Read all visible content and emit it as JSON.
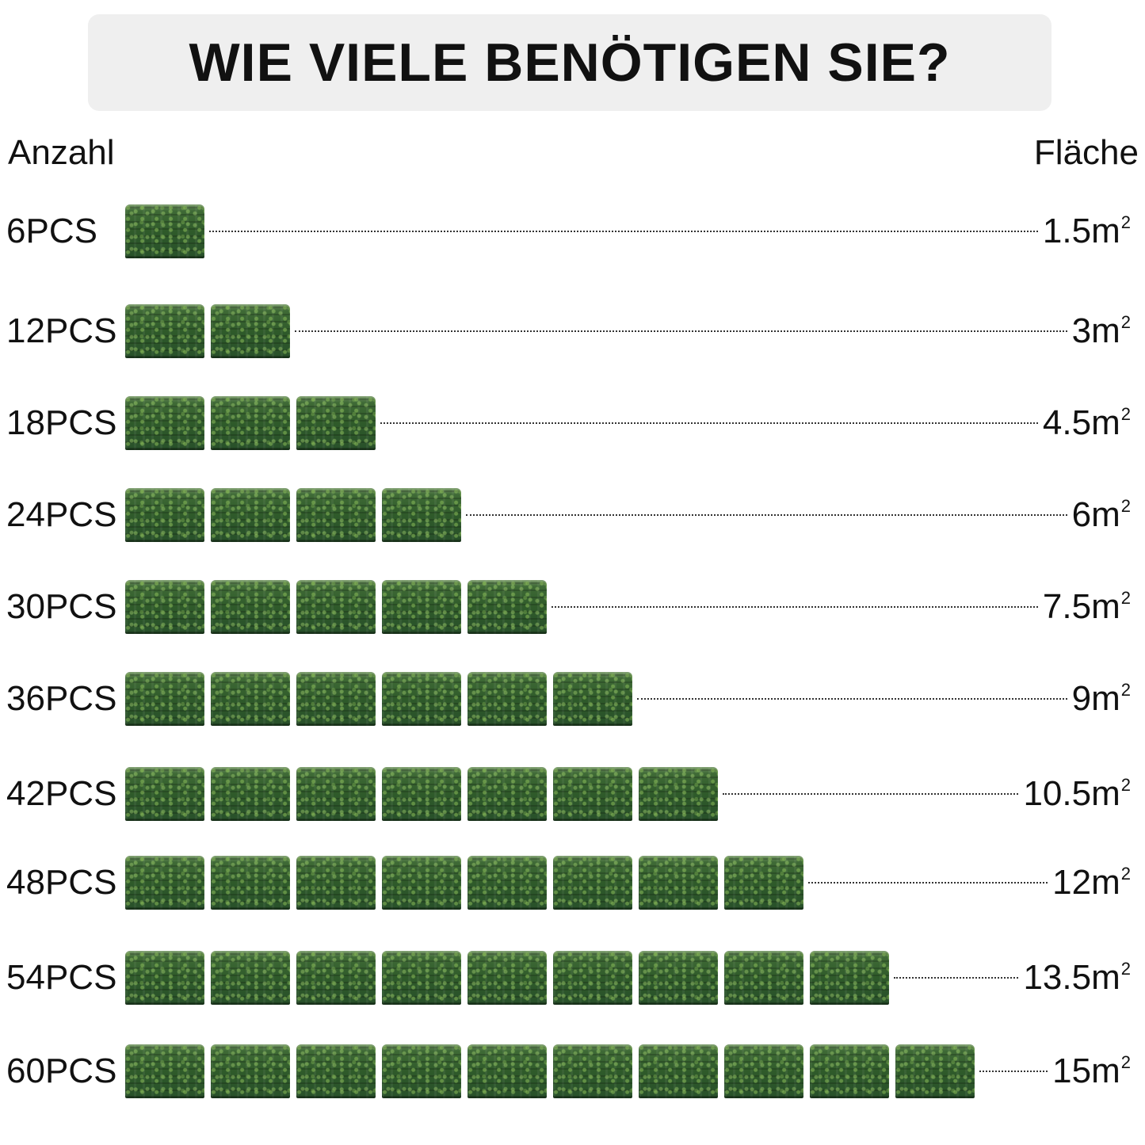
{
  "title": "WIE VIELE BENÖTIGEN SIE?",
  "headers": {
    "left": "Anzahl",
    "right": "Fläche"
  },
  "unit_superscript": "2",
  "colors": {
    "title_background": "#efefef",
    "text": "#111111",
    "panel_green": "#2f5a2a"
  },
  "rows": [
    {
      "quantity_label": "6PCS",
      "panels": 1,
      "area_label": "1.5m"
    },
    {
      "quantity_label": "12PCS",
      "panels": 2,
      "area_label": "3m"
    },
    {
      "quantity_label": "18PCS",
      "panels": 3,
      "area_label": "4.5m"
    },
    {
      "quantity_label": "24PCS",
      "panels": 4,
      "area_label": "6m"
    },
    {
      "quantity_label": "30PCS",
      "panels": 5,
      "area_label": "7.5m"
    },
    {
      "quantity_label": "36PCS",
      "panels": 6,
      "area_label": "9m"
    },
    {
      "quantity_label": "42PCS",
      "panels": 7,
      "area_label": "10.5m"
    },
    {
      "quantity_label": "48PCS",
      "panels": 8,
      "area_label": "12m"
    },
    {
      "quantity_label": "54PCS",
      "panels": 9,
      "area_label": "13.5m"
    },
    {
      "quantity_label": "60PCS",
      "panels": 10,
      "area_label": "15m"
    }
  ]
}
